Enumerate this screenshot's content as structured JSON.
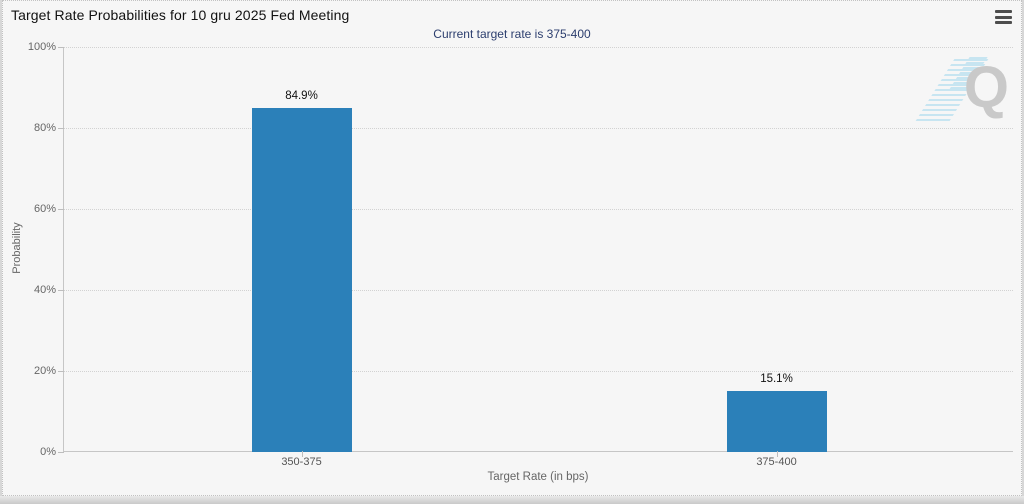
{
  "header": {
    "title": "Target Rate Probabilities for 10 gru 2025 Fed Meeting",
    "subtitle": "Current target rate is 375-400",
    "subtitle_color": "#2c3e6e"
  },
  "menu": {
    "icon": "hamburger-menu-icon"
  },
  "watermark": {
    "letter": "Q",
    "letter_color": "#c9c9c9",
    "stripe_color": "#bfe2f0"
  },
  "chart_data": {
    "type": "bar",
    "title": "Target Rate Probabilities for 10 gru 2025 Fed Meeting",
    "subtitle": "Current target rate is 375-400",
    "categories": [
      "350-375",
      "375-400"
    ],
    "values": [
      84.9,
      15.1
    ],
    "value_labels": [
      "84.9%",
      "15.1%"
    ],
    "xlabel": "Target Rate (in bps)",
    "ylabel": "Probability",
    "ylim": [
      0,
      100
    ],
    "ytick_step": 20,
    "ytick_labels": [
      "0%",
      "20%",
      "40%",
      "60%",
      "80%",
      "100%"
    ],
    "bar_color": "#2b80b9",
    "grid": "horizontal-dotted",
    "legend": "none"
  }
}
